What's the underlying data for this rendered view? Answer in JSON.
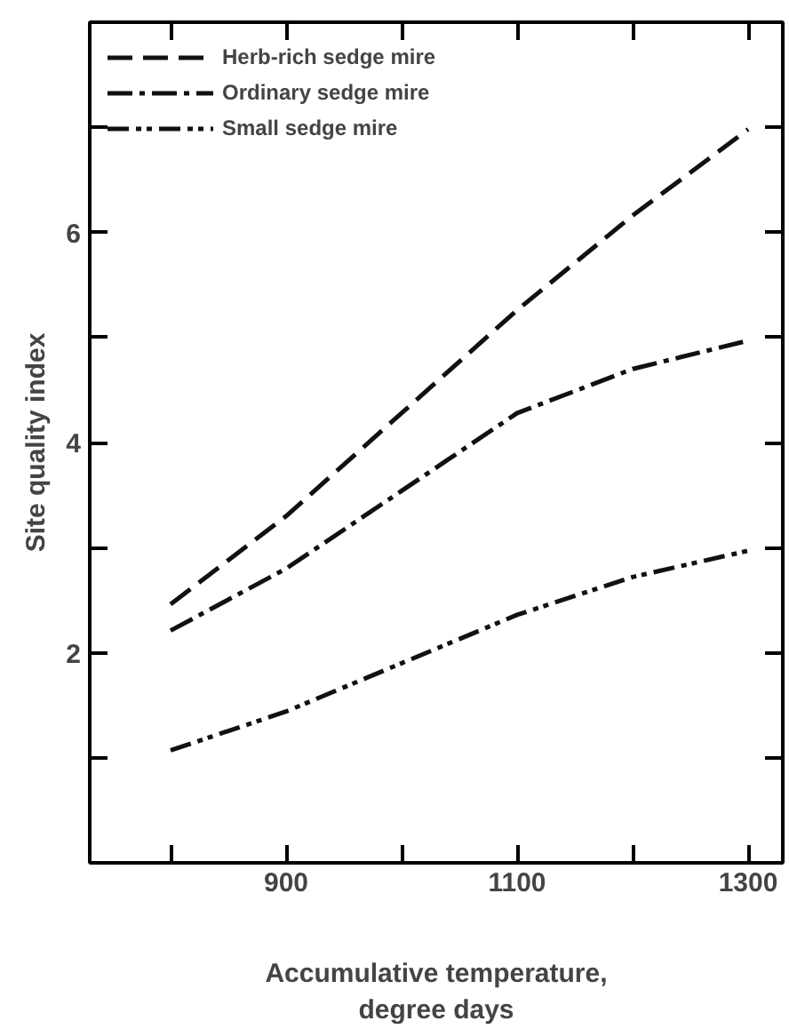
{
  "chart_data": {
    "type": "line",
    "xlabel": "Accumulative temperature,\ndegree days",
    "ylabel": "Site quality index",
    "x": [
      800,
      900,
      1000,
      1100,
      1200,
      1300
    ],
    "series": [
      {
        "name": "Herb-rich sedge mire",
        "color": "#111111",
        "line_style": "dashed",
        "values": [
          2.46,
          3.3,
          4.28,
          5.26,
          6.16,
          6.98
        ]
      },
      {
        "name": "Ordinary sedge mire",
        "color": "#111111",
        "line_style": "dashed",
        "values": [
          2.21,
          2.8,
          3.54,
          4.28,
          4.7,
          4.97
        ]
      },
      {
        "name": "Small sedge mire",
        "color": "#111111",
        "line_style": "dashed",
        "values": [
          1.07,
          1.44,
          1.9,
          2.36,
          2.72,
          2.97
        ]
      }
    ],
    "xlim": [
      730,
      1330
    ],
    "ylim": [
      0,
      8
    ],
    "xticks": [
      {
        "value": 800,
        "label": null
      },
      900,
      {
        "value": 1000,
        "label": null
      },
      1100,
      {
        "value": 1200,
        "label": null
      },
      1300
    ],
    "yticks": [
      {
        "value": 1,
        "label": null
      },
      2,
      {
        "value": 3,
        "label": null
      },
      4,
      {
        "value": 5,
        "label": null
      },
      6,
      {
        "value": 7,
        "label": null
      }
    ],
    "legend": "top left",
    "grid": false,
    "marker": "none"
  }
}
